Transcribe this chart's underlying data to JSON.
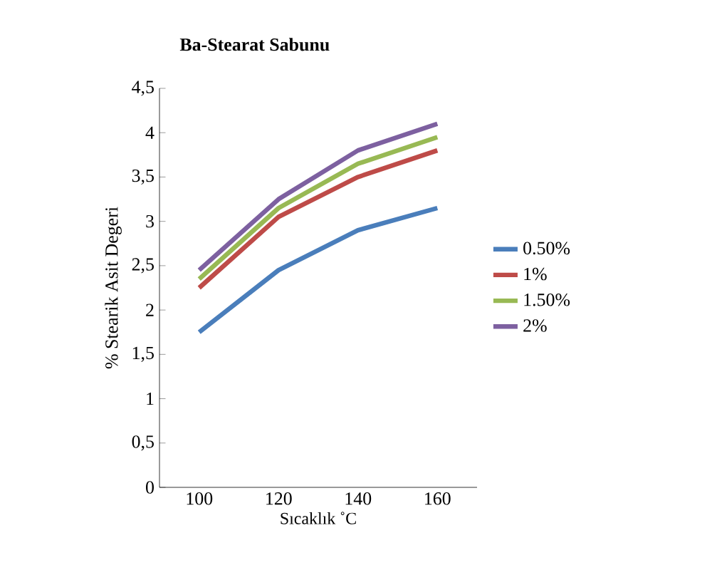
{
  "chart_data": {
    "type": "line",
    "title": "Ba-Stearat Sabunu",
    "xlabel": "Sıcaklık ˚C",
    "ylabel": "% Stearik Asit Degeri",
    "categories": [
      "100",
      "120",
      "140",
      "160"
    ],
    "series": [
      {
        "name": "0.50%",
        "color": "#4a7ebb",
        "values": [
          1.75,
          2.45,
          2.9,
          3.15
        ]
      },
      {
        "name": "1%",
        "color": "#be4b48",
        "values": [
          2.25,
          3.05,
          3.5,
          3.8
        ]
      },
      {
        "name": "1.50%",
        "color": "#98b954",
        "values": [
          2.35,
          3.15,
          3.65,
          3.95
        ]
      },
      {
        "name": "2%",
        "color": "#7d60a0",
        "values": [
          2.45,
          3.25,
          3.8,
          4.1
        ]
      }
    ],
    "ylim": [
      0,
      4.5
    ],
    "yticks": [
      0,
      {
        "value": 0.5,
        "label": "0,5"
      },
      1,
      {
        "value": 1.5,
        "label": "1,5"
      },
      2,
      {
        "value": 2.5,
        "label": "2,5"
      },
      3,
      {
        "value": 3.5,
        "label": "3,5"
      },
      4,
      {
        "value": 4.5,
        "label": "4,5"
      }
    ],
    "legend": "right",
    "marker": "none",
    "line_style": "solid",
    "grid": false
  }
}
